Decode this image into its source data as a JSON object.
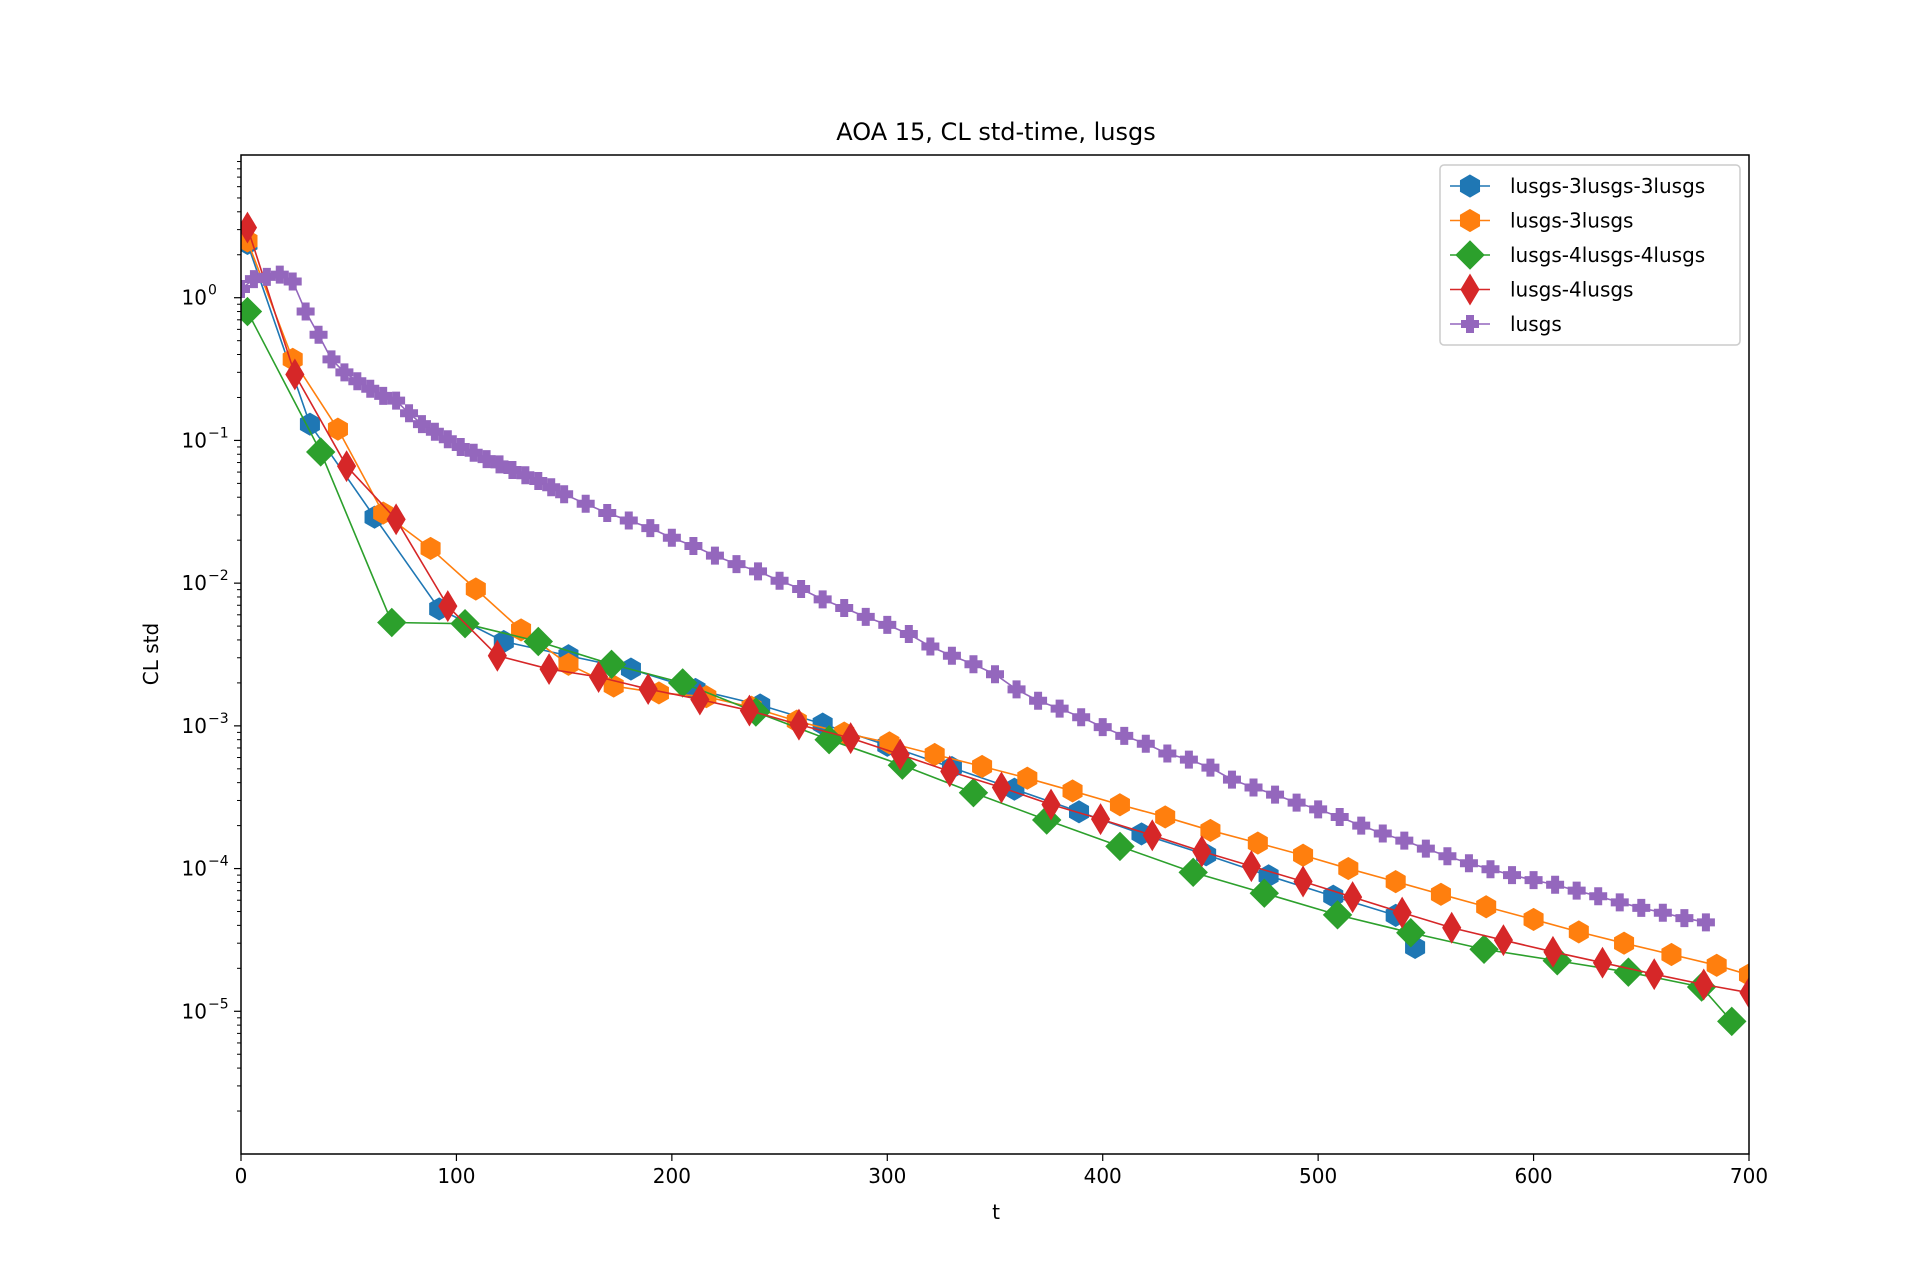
{
  "chart_data": {
    "type": "line",
    "title": "AOA 15, CL std-time, lusgs",
    "xlabel": "t",
    "ylabel": "CL std",
    "xlim": [
      0,
      700
    ],
    "ylim": [
      1e-06,
      10
    ],
    "yscale": "log",
    "xticks": [
      0,
      100,
      200,
      300,
      400,
      500,
      600,
      700
    ],
    "xtick_labels": [
      "0",
      "100",
      "200",
      "300",
      "400",
      "500",
      "600",
      "700"
    ],
    "yticks": [
      1e-05,
      0.0001,
      0.001,
      0.01,
      0.1,
      1
    ],
    "ytick_base": "10",
    "ytick_exponents": [
      "−5",
      "−4",
      "−3",
      "−2",
      "−1",
      "0"
    ],
    "grid": false,
    "legend_position": "top-right",
    "series": [
      {
        "name": "lusgs-3lusgs-3lusgs",
        "color": "#1f77b4",
        "marker": "hexagon",
        "x": [
          3,
          32,
          62,
          92,
          122,
          152,
          181,
          211,
          241,
          270,
          300,
          330,
          359,
          389,
          418,
          448,
          477,
          507,
          536,
          545
        ],
        "y": [
          2.4,
          0.13,
          0.029,
          0.0066,
          0.0039,
          0.0031,
          0.0025,
          0.0018,
          0.0014,
          0.00103,
          0.00073,
          0.00051,
          0.00036,
          0.00025,
          0.000175,
          0.000125,
          8.9e-05,
          6.4e-05,
          4.7e-05,
          2.8e-05
        ]
      },
      {
        "name": "lusgs-3lusgs",
        "color": "#ff7f0e",
        "marker": "hexagon",
        "x": [
          3,
          24,
          45,
          66,
          88,
          109,
          130,
          152,
          173,
          194,
          216,
          237,
          258,
          280,
          301,
          322,
          344,
          365,
          386,
          408,
          429,
          450,
          472,
          493,
          514,
          536,
          557,
          578,
          600,
          621,
          642,
          664,
          685,
          700
        ],
        "y": [
          2.5,
          0.37,
          0.12,
          0.031,
          0.0175,
          0.0091,
          0.0047,
          0.0027,
          0.0019,
          0.0017,
          0.0016,
          0.00135,
          0.00108,
          0.00089,
          0.00076,
          0.00063,
          0.00052,
          0.00043,
          0.00035,
          0.00028,
          0.00023,
          0.000185,
          0.000151,
          0.000124,
          0.0001,
          8.1e-05,
          6.6e-05,
          5.4e-05,
          4.4e-05,
          3.6e-05,
          3e-05,
          2.5e-05,
          2.1e-05,
          1.8e-05
        ]
      },
      {
        "name": "lusgs-4lusgs-4lusgs",
        "color": "#2ca02c",
        "marker": "diamond",
        "x": [
          3,
          37,
          70,
          104,
          138,
          172,
          205,
          239,
          273,
          307,
          340,
          374,
          408,
          442,
          475,
          509,
          543,
          577,
          611,
          644,
          678,
          692
        ],
        "y": [
          0.8,
          0.083,
          0.0053,
          0.0052,
          0.0039,
          0.0027,
          0.002,
          0.00125,
          0.0008,
          0.00053,
          0.00034,
          0.000219,
          0.000143,
          9.41e-05,
          6.72e-05,
          4.74e-05,
          3.55e-05,
          2.72e-05,
          2.26e-05,
          1.88e-05,
          1.48e-05,
          8.5e-06
        ]
      },
      {
        "name": "lusgs-4lusgs",
        "color": "#d62728",
        "marker": "thin_diamond",
        "x": [
          3,
          25,
          49,
          72,
          96,
          119,
          143,
          166,
          189,
          213,
          236,
          259,
          283,
          306,
          329,
          353,
          376,
          399,
          423,
          446,
          469,
          493,
          516,
          539,
          562,
          586,
          609,
          632,
          656,
          679,
          700
        ],
        "y": [
          3.1,
          0.29,
          0.066,
          0.028,
          0.0069,
          0.0031,
          0.0025,
          0.0022,
          0.00181,
          0.00153,
          0.00128,
          0.00102,
          0.00082,
          0.00063,
          0.00048,
          0.00037,
          0.000281,
          0.000222,
          0.000171,
          0.000132,
          0.000104,
          8.12e-05,
          6.31e-05,
          4.91e-05,
          3.85e-05,
          3.15e-05,
          2.61e-05,
          2.19e-05,
          1.82e-05,
          1.54e-05,
          1.35e-05
        ]
      },
      {
        "name": "lusgs",
        "color": "#9467bd",
        "marker": "plus",
        "x": [
          0,
          6,
          12,
          18,
          24,
          30,
          36,
          42,
          48,
          54,
          60,
          66,
          72,
          78,
          84,
          90,
          96,
          102,
          108,
          114,
          120,
          126,
          132,
          138,
          144,
          150,
          160,
          170,
          180,
          190,
          200,
          210,
          220,
          230,
          240,
          250,
          260,
          270,
          280,
          290,
          300,
          310,
          320,
          330,
          340,
          350,
          360,
          370,
          380,
          390,
          400,
          410,
          420,
          430,
          440,
          450,
          460,
          470,
          480,
          490,
          500,
          510,
          520,
          530,
          540,
          550,
          560,
          570,
          580,
          590,
          600,
          610,
          620,
          630,
          640,
          650,
          660,
          670,
          680
        ],
        "y": [
          1.15,
          1.35,
          1.4,
          1.45,
          1.3,
          0.8,
          0.55,
          0.37,
          0.3,
          0.26,
          0.23,
          0.205,
          0.19,
          0.155,
          0.13,
          0.115,
          0.102,
          0.09,
          0.082,
          0.074,
          0.068,
          0.062,
          0.057,
          0.052,
          0.047,
          0.042,
          0.036,
          0.031,
          0.0275,
          0.0243,
          0.0208,
          0.0182,
          0.0156,
          0.0136,
          0.0121,
          0.0104,
          0.0091,
          0.0077,
          0.0067,
          0.0058,
          0.0051,
          0.0044,
          0.0036,
          0.0031,
          0.0027,
          0.0023,
          0.0018,
          0.0015,
          0.00132,
          0.00115,
          0.00098,
          0.00085,
          0.00075,
          0.00064,
          0.00058,
          0.00051,
          0.00042,
          0.00037,
          0.00033,
          0.00029,
          0.00026,
          0.00023,
          0.0002,
          0.000176,
          0.000157,
          0.000138,
          0.000122,
          0.000109,
          9.9e-05,
          9e-05,
          8.3e-05,
          7.7e-05,
          7e-05,
          6.4e-05,
          5.8e-05,
          5.3e-05,
          4.9e-05,
          4.5e-05,
          4.2e-05
        ]
      }
    ]
  }
}
